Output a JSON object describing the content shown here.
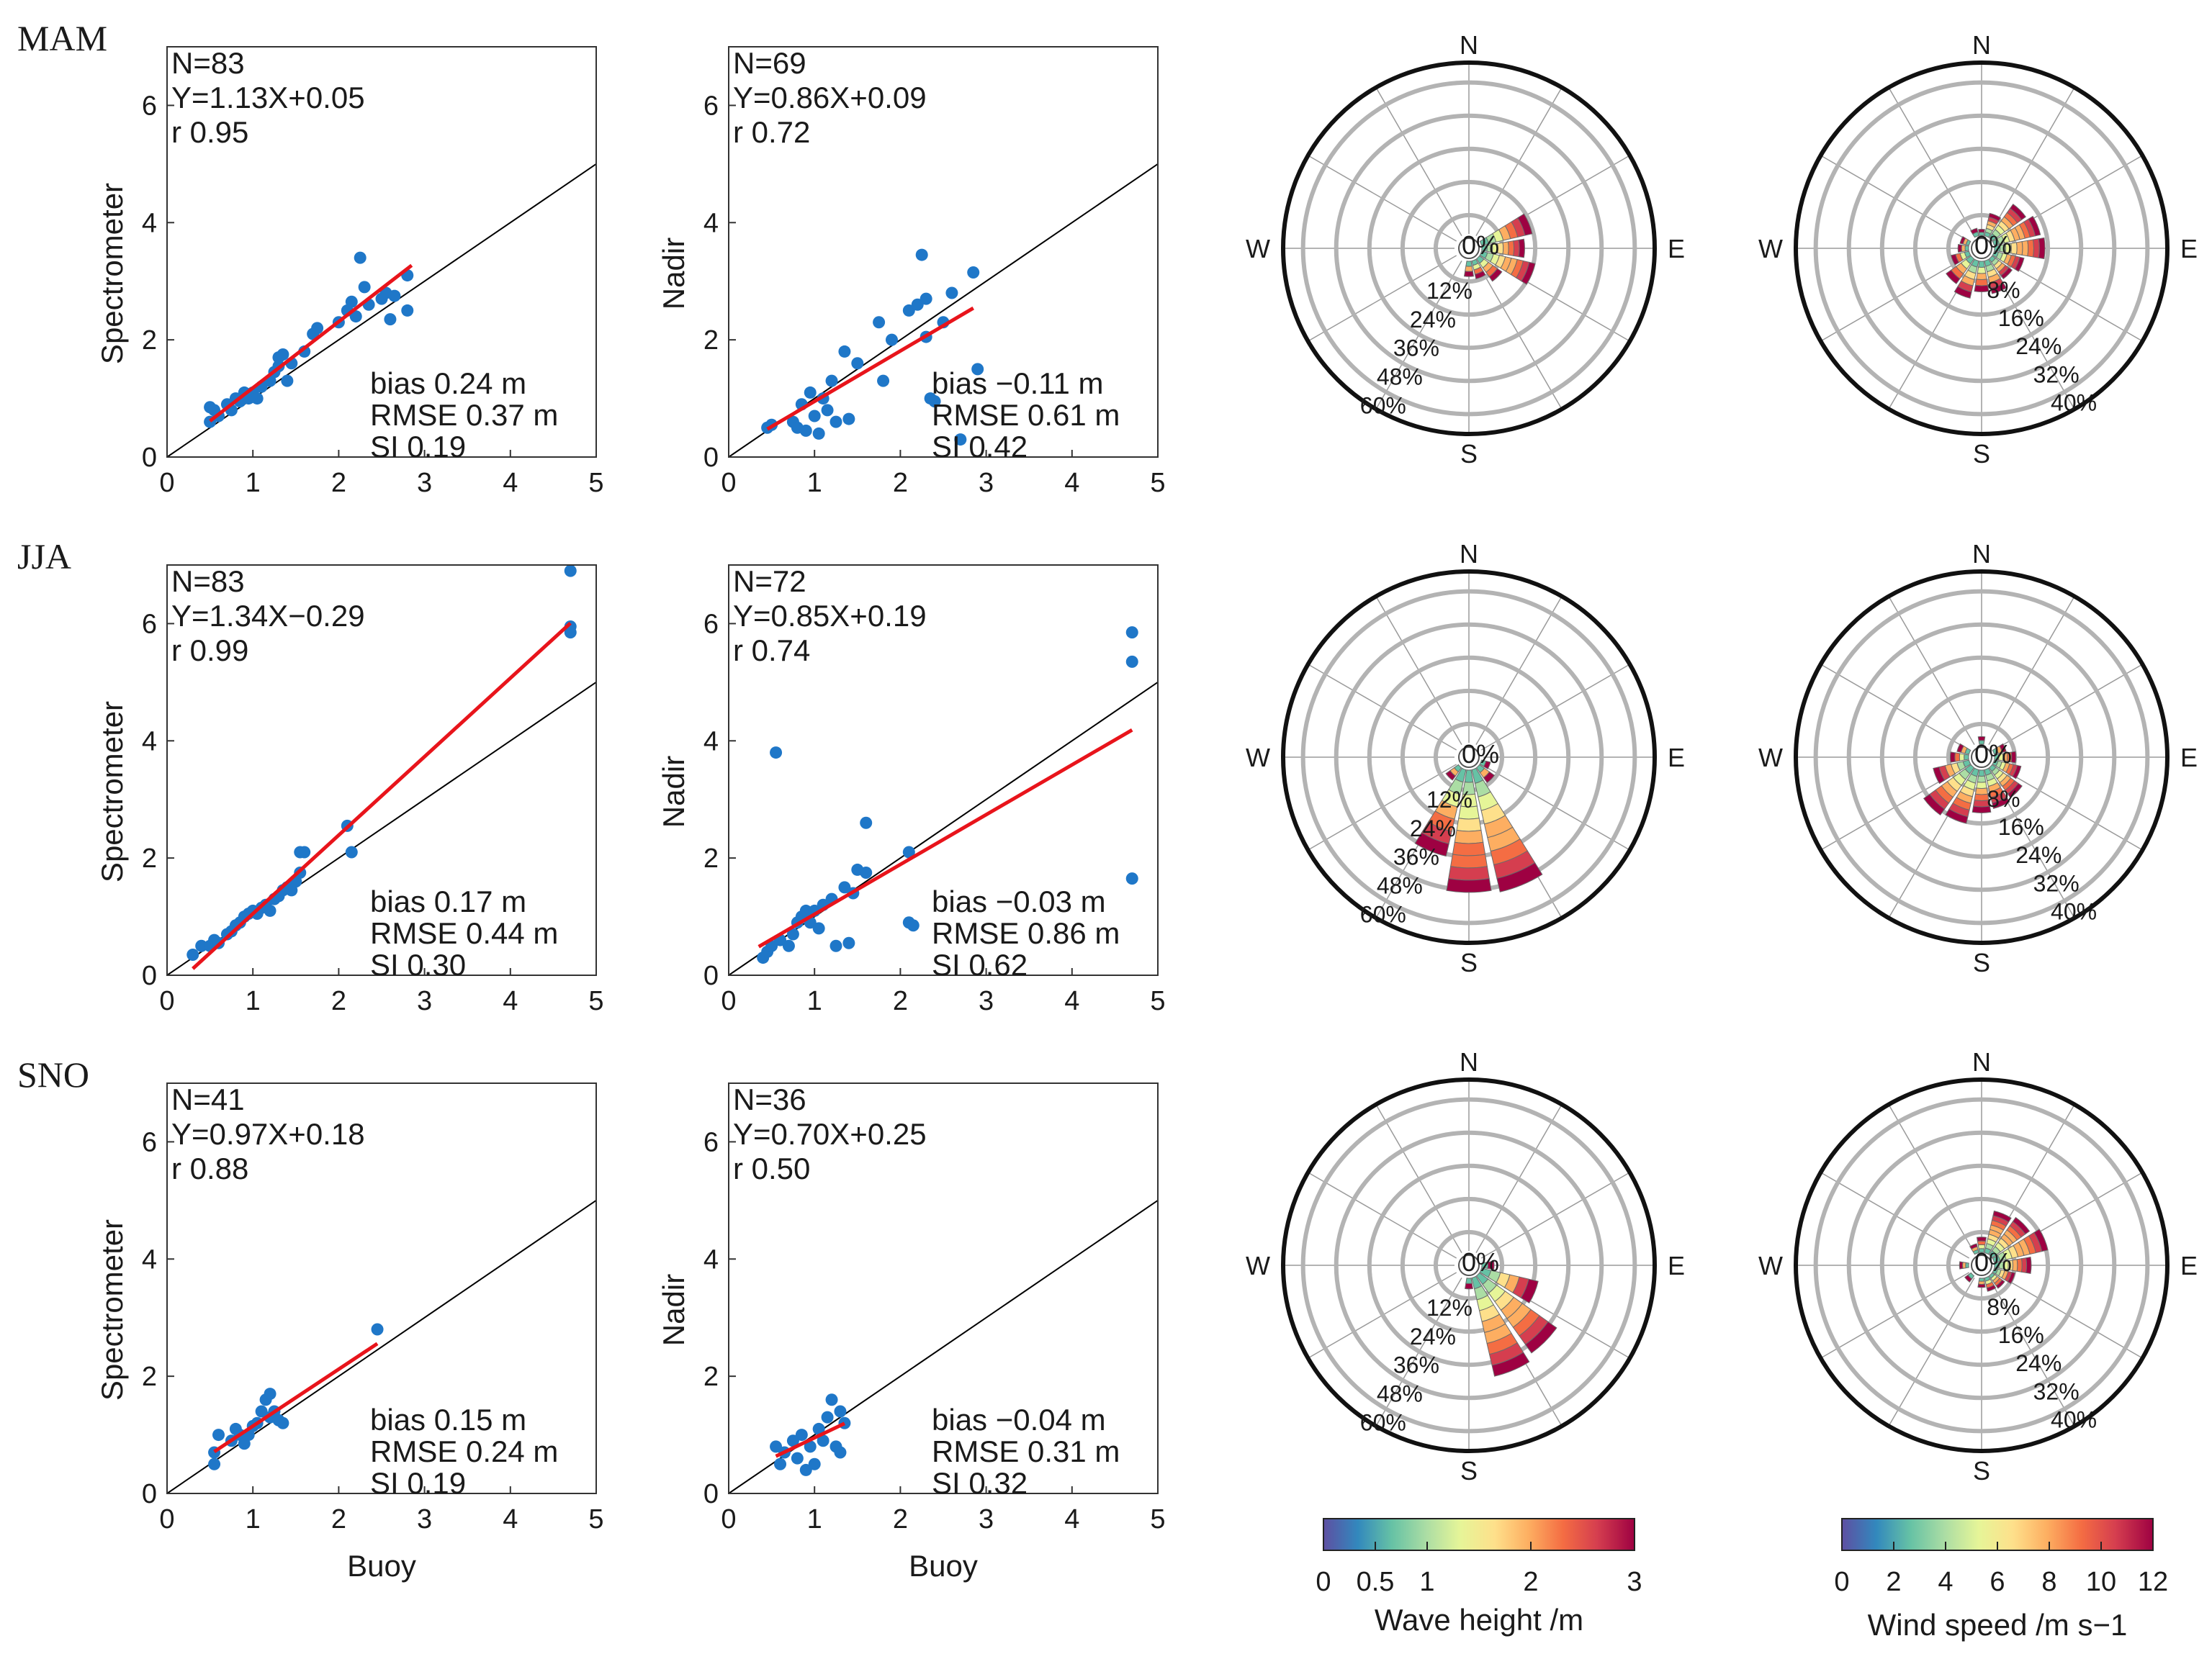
{
  "chart_data": {
    "type": "scatter",
    "scatter_axes": {
      "xlim": [
        0,
        5
      ],
      "ylim": [
        0,
        7
      ],
      "xticks": [
        0,
        1,
        2,
        3,
        4,
        5
      ],
      "yticks": [
        0,
        2,
        4,
        6
      ]
    },
    "rows": [
      {
        "season": "MAM",
        "spectrometer": {
          "ylabel": "Spectrometer",
          "xlabel": "",
          "N": "N=83",
          "fit": "Y=1.13X+0.05",
          "r": "r 0.95",
          "bias": "bias 0.24 m",
          "rmse": "RMSE 0.37 m",
          "si": "SI 0.19",
          "fit_line": {
            "slope": 1.13,
            "intercept": 0.05,
            "x": [
              0.5,
              2.85
            ]
          },
          "points": [
            [
              0.5,
              0.6
            ],
            [
              0.5,
              0.85
            ],
            [
              0.55,
              0.8
            ],
            [
              0.6,
              0.7
            ],
            [
              0.7,
              0.9
            ],
            [
              0.75,
              0.8
            ],
            [
              0.8,
              1.0
            ],
            [
              0.85,
              0.95
            ],
            [
              0.9,
              1.1
            ],
            [
              0.95,
              1.0
            ],
            [
              1.0,
              1.1
            ],
            [
              1.05,
              1.0
            ],
            [
              1.1,
              1.2
            ],
            [
              1.2,
              1.3
            ],
            [
              1.25,
              1.45
            ],
            [
              1.3,
              1.55
            ],
            [
              1.3,
              1.7
            ],
            [
              1.35,
              1.75
            ],
            [
              1.4,
              1.3
            ],
            [
              1.45,
              1.6
            ],
            [
              1.6,
              1.8
            ],
            [
              1.7,
              2.1
            ],
            [
              1.75,
              2.2
            ],
            [
              2.0,
              2.3
            ],
            [
              2.1,
              2.5
            ],
            [
              2.15,
              2.65
            ],
            [
              2.2,
              2.4
            ],
            [
              2.25,
              3.4
            ],
            [
              2.3,
              2.9
            ],
            [
              2.35,
              2.6
            ],
            [
              2.5,
              2.7
            ],
            [
              2.55,
              2.8
            ],
            [
              2.6,
              2.35
            ],
            [
              2.65,
              2.75
            ],
            [
              2.8,
              3.1
            ],
            [
              2.8,
              2.5
            ]
          ]
        },
        "nadir": {
          "ylabel": "Nadir",
          "xlabel": "",
          "N": "N=69",
          "fit": "Y=0.86X+0.09",
          "r": "r 0.72",
          "bias": "bias −0.11 m",
          "rmse": "RMSE 0.61 m",
          "si": "SI 0.42",
          "fit_line": {
            "slope": 0.86,
            "intercept": 0.09,
            "x": [
              0.45,
              2.85
            ]
          },
          "points": [
            [
              0.45,
              0.5
            ],
            [
              0.5,
              0.55
            ],
            [
              0.75,
              0.6
            ],
            [
              0.8,
              0.5
            ],
            [
              0.85,
              0.9
            ],
            [
              0.9,
              0.45
            ],
            [
              0.95,
              1.1
            ],
            [
              1.0,
              0.7
            ],
            [
              1.05,
              0.4
            ],
            [
              1.1,
              1.0
            ],
            [
              1.15,
              0.8
            ],
            [
              1.2,
              1.3
            ],
            [
              1.25,
              0.6
            ],
            [
              1.35,
              1.8
            ],
            [
              1.4,
              0.65
            ],
            [
              1.5,
              1.6
            ],
            [
              1.75,
              2.3
            ],
            [
              1.8,
              1.3
            ],
            [
              1.9,
              2.0
            ],
            [
              2.1,
              2.5
            ],
            [
              2.2,
              2.6
            ],
            [
              2.25,
              3.45
            ],
            [
              2.3,
              2.7
            ],
            [
              2.35,
              1.0
            ],
            [
              2.4,
              0.95
            ],
            [
              2.5,
              2.3
            ],
            [
              2.6,
              2.8
            ],
            [
              2.7,
              0.3
            ],
            [
              2.85,
              3.15
            ],
            [
              2.9,
              1.5
            ],
            [
              2.3,
              2.05
            ]
          ]
        },
        "wave_rose": {
          "variable": "Wave height",
          "unit": "m",
          "rings": [
            "12%",
            "24%",
            "36%",
            "48%",
            "60%"
          ]
        },
        "wind_rose": {
          "variable": "Wind speed",
          "unit": "m s−1",
          "rings": [
            "8%",
            "16%",
            "24%",
            "32%",
            "40%"
          ]
        }
      },
      {
        "season": "JJA",
        "spectrometer": {
          "ylabel": "Spectrometer",
          "xlabel": "",
          "N": "N=83",
          "fit": "Y=1.34X−0.29",
          "r": "r 0.99",
          "bias": "bias 0.17 m",
          "rmse": "RMSE 0.44 m",
          "si": "SI 0.30",
          "fit_line": {
            "slope": 1.34,
            "intercept": -0.29,
            "x": [
              0.3,
              4.7
            ]
          },
          "points": [
            [
              0.3,
              0.35
            ],
            [
              0.4,
              0.5
            ],
            [
              0.5,
              0.5
            ],
            [
              0.55,
              0.6
            ],
            [
              0.6,
              0.55
            ],
            [
              0.7,
              0.7
            ],
            [
              0.75,
              0.75
            ],
            [
              0.8,
              0.85
            ],
            [
              0.85,
              0.9
            ],
            [
              0.9,
              1.0
            ],
            [
              0.95,
              1.05
            ],
            [
              1.0,
              1.1
            ],
            [
              1.05,
              1.05
            ],
            [
              1.1,
              1.15
            ],
            [
              1.15,
              1.2
            ],
            [
              1.2,
              1.1
            ],
            [
              1.25,
              1.3
            ],
            [
              1.3,
              1.35
            ],
            [
              1.35,
              1.45
            ],
            [
              1.4,
              1.5
            ],
            [
              1.45,
              1.45
            ],
            [
              1.5,
              1.6
            ],
            [
              1.55,
              1.75
            ],
            [
              1.6,
              2.1
            ],
            [
              1.55,
              2.1
            ],
            [
              2.1,
              2.55
            ],
            [
              2.15,
              2.1
            ],
            [
              4.7,
              6.9
            ],
            [
              4.7,
              5.85
            ],
            [
              4.7,
              5.95
            ]
          ]
        },
        "nadir": {
          "ylabel": "Nadir",
          "xlabel": "",
          "N": "N=72",
          "fit": "Y=0.85X+0.19",
          "r": "r 0.74",
          "bias": "bias −0.03 m",
          "rmse": "RMSE 0.86 m",
          "si": "SI 0.62",
          "fit_line": {
            "slope": 0.85,
            "intercept": 0.19,
            "x": [
              0.35,
              4.7
            ]
          },
          "points": [
            [
              0.4,
              0.3
            ],
            [
              0.45,
              0.4
            ],
            [
              0.5,
              0.5
            ],
            [
              0.55,
              3.8
            ],
            [
              0.6,
              0.6
            ],
            [
              0.7,
              0.5
            ],
            [
              0.75,
              0.7
            ],
            [
              0.8,
              0.9
            ],
            [
              0.85,
              1.0
            ],
            [
              0.9,
              1.1
            ],
            [
              0.95,
              0.9
            ],
            [
              1.0,
              1.1
            ],
            [
              1.05,
              0.8
            ],
            [
              1.1,
              1.2
            ],
            [
              1.2,
              1.3
            ],
            [
              1.25,
              0.5
            ],
            [
              1.35,
              1.5
            ],
            [
              1.4,
              0.55
            ],
            [
              1.45,
              1.4
            ],
            [
              1.5,
              1.8
            ],
            [
              1.6,
              2.6
            ],
            [
              1.6,
              1.75
            ],
            [
              2.1,
              2.1
            ],
            [
              2.1,
              0.9
            ],
            [
              2.15,
              0.85
            ],
            [
              4.7,
              5.85
            ],
            [
              4.7,
              5.35
            ],
            [
              4.7,
              1.65
            ]
          ]
        },
        "wave_rose": {
          "variable": "Wave height",
          "unit": "m",
          "rings": [
            "12%",
            "24%",
            "36%",
            "48%",
            "60%"
          ]
        },
        "wind_rose": {
          "variable": "Wind speed",
          "unit": "m s−1",
          "rings": [
            "8%",
            "16%",
            "24%",
            "32%",
            "40%"
          ]
        }
      },
      {
        "season": "SNO",
        "spectrometer": {
          "ylabel": "Spectrometer",
          "xlabel": "Buoy",
          "N": "N=41",
          "fit": "Y=0.97X+0.18",
          "r": "r 0.88",
          "bias": "bias 0.15 m",
          "rmse": "RMSE 0.24 m",
          "si": "SI 0.19",
          "fit_line": {
            "slope": 0.97,
            "intercept": 0.18,
            "x": [
              0.55,
              2.45
            ]
          },
          "points": [
            [
              0.55,
              0.5
            ],
            [
              0.55,
              0.7
            ],
            [
              0.6,
              1.0
            ],
            [
              0.75,
              0.9
            ],
            [
              0.8,
              1.1
            ],
            [
              0.85,
              1.0
            ],
            [
              0.9,
              0.85
            ],
            [
              0.95,
              1.0
            ],
            [
              1.0,
              1.15
            ],
            [
              1.05,
              1.2
            ],
            [
              1.1,
              1.4
            ],
            [
              1.15,
              1.6
            ],
            [
              1.2,
              1.7
            ],
            [
              1.2,
              1.3
            ],
            [
              1.25,
              1.4
            ],
            [
              1.3,
              1.25
            ],
            [
              1.35,
              1.2
            ],
            [
              2.45,
              2.8
            ]
          ]
        },
        "nadir": {
          "ylabel": "Nadir",
          "xlabel": "Buoy",
          "N": "N=36",
          "fit": "Y=0.70X+0.25",
          "r": "r 0.50",
          "bias": "bias −0.04 m",
          "rmse": "RMSE 0.31 m",
          "si": "SI 0.32",
          "fit_line": {
            "slope": 0.7,
            "intercept": 0.25,
            "x": [
              0.55,
              1.35
            ]
          },
          "points": [
            [
              0.55,
              0.8
            ],
            [
              0.6,
              0.5
            ],
            [
              0.65,
              0.7
            ],
            [
              0.75,
              0.9
            ],
            [
              0.8,
              0.6
            ],
            [
              0.85,
              1.0
            ],
            [
              0.9,
              0.4
            ],
            [
              0.95,
              0.8
            ],
            [
              1.0,
              0.5
            ],
            [
              1.05,
              1.1
            ],
            [
              1.1,
              0.9
            ],
            [
              1.15,
              1.3
            ],
            [
              1.2,
              1.6
            ],
            [
              1.25,
              0.8
            ],
            [
              1.3,
              1.4
            ],
            [
              1.35,
              1.2
            ],
            [
              1.3,
              0.7
            ]
          ]
        },
        "wave_rose": {
          "variable": "Wave height",
          "unit": "m",
          "rings": [
            "12%",
            "24%",
            "36%",
            "48%",
            "60%"
          ]
        },
        "wind_rose": {
          "variable": "Wind speed",
          "unit": "m s−1",
          "rings": [
            "8%",
            "16%",
            "24%",
            "32%",
            "40%"
          ]
        }
      }
    ],
    "rose_labels": {
      "north": "N",
      "south": "S",
      "east": "E",
      "west": "W",
      "calm": "0%"
    },
    "colorbars": [
      {
        "label": "Wave height /m",
        "min": 0,
        "max": 3,
        "ticks": [
          "0",
          "0.5",
          "1",
          "2",
          "3"
        ],
        "tick_values": [
          0,
          0.5,
          1,
          2,
          3
        ]
      },
      {
        "label": "Wind speed /m s−1",
        "min": 0,
        "max": 12,
        "ticks": [
          "0",
          "2",
          "4",
          "6",
          "8",
          "10",
          "12"
        ],
        "tick_values": [
          0,
          2,
          4,
          6,
          8,
          10,
          12
        ]
      }
    ],
    "colormap": [
      "#5e4fa2",
      "#3288bd",
      "#66c2a5",
      "#abdda4",
      "#e6f598",
      "#fee08b",
      "#fdae61",
      "#f46d43",
      "#d53e4f",
      "#9e0142"
    ]
  }
}
